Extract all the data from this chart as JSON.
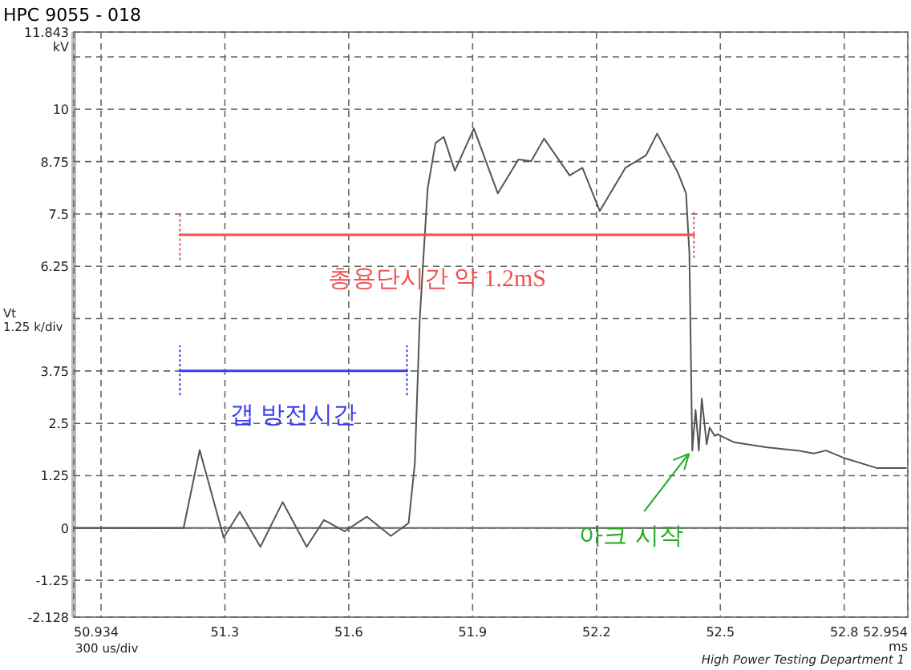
{
  "chart_data": {
    "type": "line",
    "title": "HPC  9055 - 018",
    "xlabel": "300 us/div",
    "ylabel": "Vt\n1.25 k/div",
    "xlim": [
      50.934,
      52.954
    ],
    "ylim": [
      -2.128,
      11.843
    ],
    "xticks": [
      {
        "value": 50.934,
        "label": "50.934"
      },
      {
        "value": 51.0,
        "label": null
      },
      51.3,
      51.6,
      51.9,
      52.2,
      52.5,
      52.8,
      {
        "value": 52.954,
        "label": "52.954\nms"
      }
    ],
    "yticks": [
      -2.128,
      -1.25,
      0,
      1.25,
      2.5,
      3.75,
      {
        "value": 5,
        "label": null
      },
      6.25,
      7.5,
      8.75,
      10,
      {
        "value": 11.25,
        "label": null
      },
      {
        "value": 11.843,
        "label": "11.843\nkV"
      }
    ],
    "grid": true,
    "ref_lines": [
      {
        "axis": "y",
        "value": 0,
        "color": "#666666",
        "line_style": "solid"
      }
    ],
    "series": [
      {
        "color": "#555555",
        "line_style": "solid",
        "x": [
          50.934,
          51.2,
          51.239,
          51.297,
          51.336,
          51.386,
          51.44,
          51.498,
          51.54,
          51.59,
          51.644,
          51.702,
          51.745,
          51.76,
          51.772,
          51.791,
          51.81,
          51.83,
          51.857,
          51.903,
          51.961,
          52.011,
          52.042,
          52.073,
          52.135,
          52.166,
          52.208,
          52.27,
          52.32,
          52.347,
          52.397,
          52.417,
          52.425,
          52.432,
          52.44,
          52.448,
          52.455,
          52.467,
          52.474,
          52.486,
          52.494,
          52.509,
          52.532,
          52.61,
          52.687,
          52.726,
          52.756,
          52.803,
          52.88,
          52.95
        ],
        "values": [
          0,
          0,
          1.86,
          -0.23,
          0.39,
          -0.45,
          0.62,
          -0.45,
          0.19,
          -0.08,
          0.27,
          -0.19,
          0.12,
          1.54,
          5.0,
          8.1,
          9.19,
          9.34,
          8.53,
          9.54,
          7.99,
          8.8,
          8.76,
          9.3,
          8.42,
          8.6,
          7.57,
          8.6,
          8.9,
          9.42,
          8.49,
          7.99,
          6.56,
          1.85,
          2.82,
          1.85,
          3.09,
          2.0,
          2.4,
          2.2,
          2.24,
          2.16,
          2.05,
          1.93,
          1.85,
          1.78,
          1.85,
          1.66,
          1.43,
          1.43
        ]
      },
      {
        "name": "총용단시간 약 1.2mS",
        "color": "#f05050",
        "line_style": "solid",
        "x": [
          51.191,
          52.436
        ],
        "values": [
          7.0,
          7.0
        ]
      },
      {
        "color": "#f05050",
        "line_style": "dotted",
        "x": [
          51.191,
          51.191
        ],
        "values": [
          6.4,
          7.5
        ]
      },
      {
        "color": "#f05050",
        "line_style": "dotted",
        "x": [
          52.436,
          52.436
        ],
        "values": [
          6.45,
          7.6
        ]
      },
      {
        "name": "갭 방전시간",
        "color": "#3a3af0",
        "line_style": "solid",
        "x": [
          51.191,
          51.741
        ],
        "values": [
          3.75,
          3.75
        ]
      },
      {
        "color": "#3a3af0",
        "line_style": "dotted",
        "x": [
          51.191,
          51.191
        ],
        "values": [
          3.17,
          4.36
        ]
      },
      {
        "color": "#3a3af0",
        "line_style": "dotted",
        "x": [
          51.741,
          51.741
        ],
        "values": [
          3.17,
          4.36
        ]
      }
    ],
    "annotations": [
      {
        "text": "아크 시작",
        "x": 52.432,
        "y": 1.85
      },
      "High Power Testing Department 1"
    ]
  }
}
